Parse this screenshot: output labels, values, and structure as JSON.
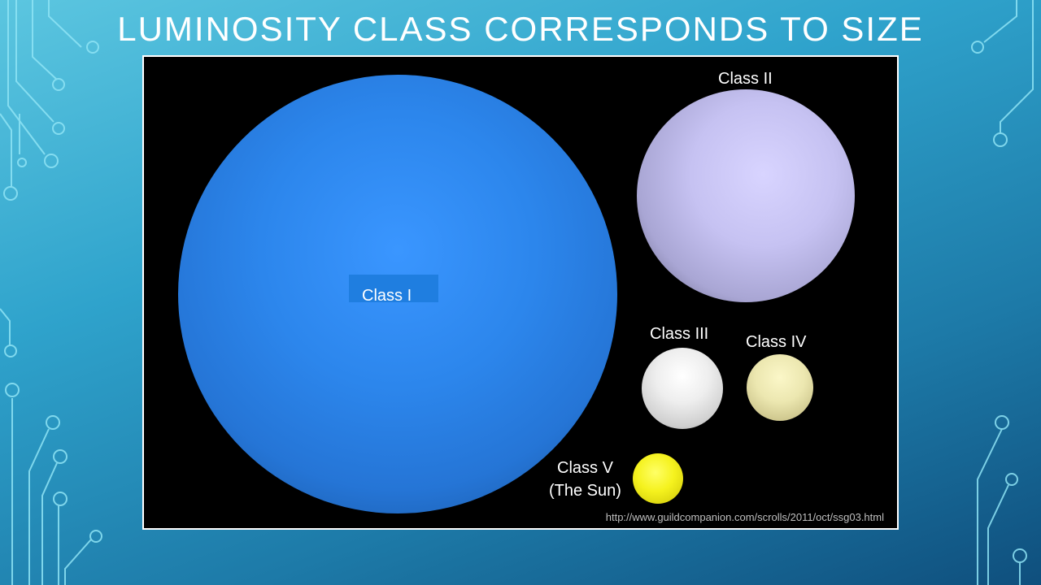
{
  "slide": {
    "title": "LUMINOSITY CLASS CORRESPONDS TO SIZE"
  },
  "image": {
    "stars": [
      {
        "label": "Class I",
        "color": "#2c86ec"
      },
      {
        "label": "Class II",
        "color": "#c6c2f2"
      },
      {
        "label": "Class III",
        "color": "#eeeeee"
      },
      {
        "label": "Class IV",
        "color": "#ece7b0"
      },
      {
        "label_line1": "Class V",
        "label_line2": "(The Sun)",
        "color": "#f5f21e"
      }
    ],
    "source": "http://www.guildcompanion.com/scrolls/2011/oct/ssg03.html"
  }
}
